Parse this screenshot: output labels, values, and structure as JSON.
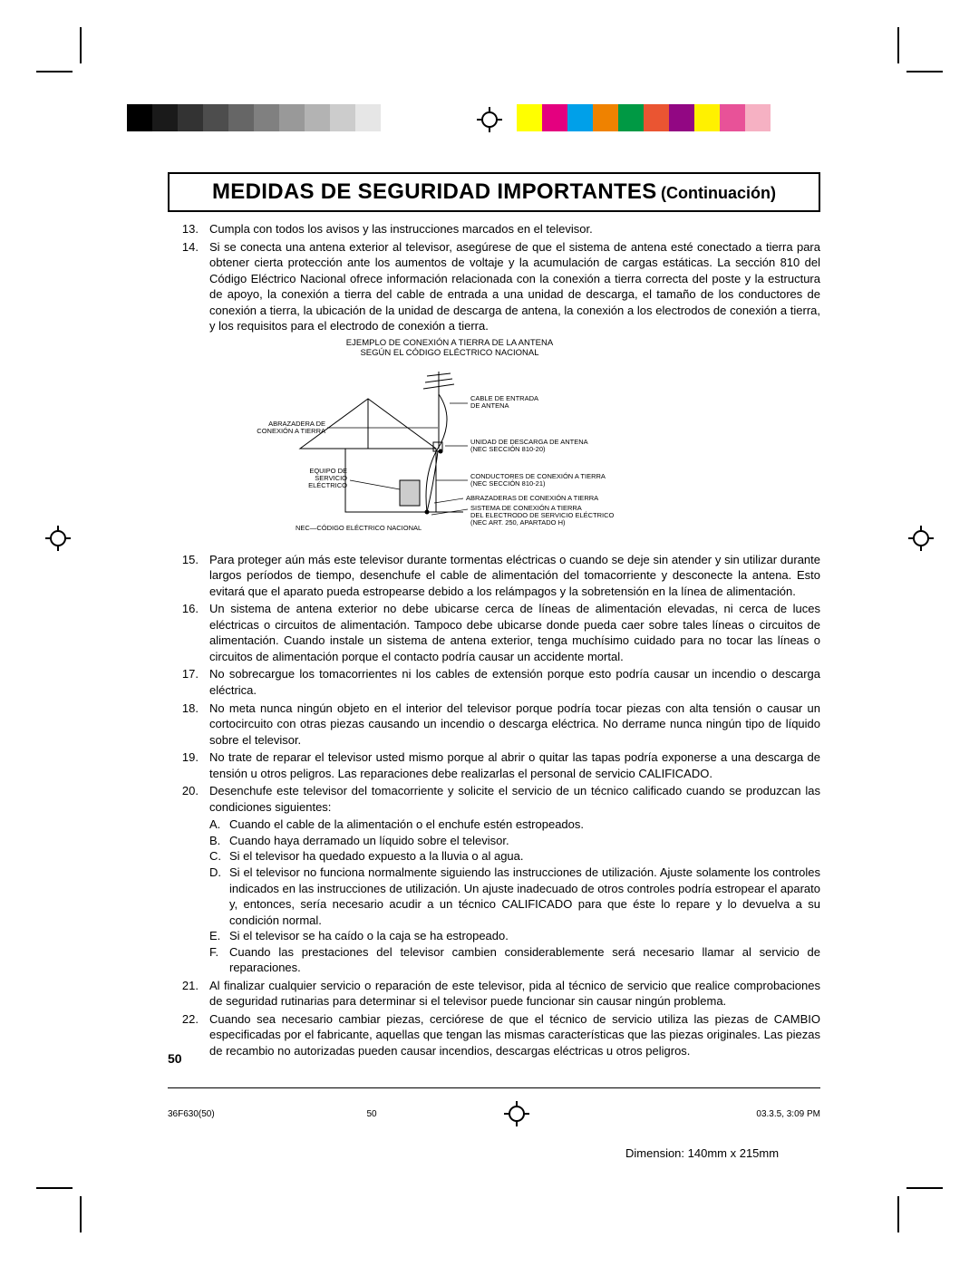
{
  "title": {
    "main": "MEDIDAS DE SEGURIDAD IMPORTANTES",
    "sub": "(Continuación)"
  },
  "colorbar": {
    "grayscale": [
      "#000000",
      "#1a1a1a",
      "#333333",
      "#4d4d4d",
      "#666666",
      "#808080",
      "#999999",
      "#b3b3b3",
      "#cccccc",
      "#e6e6e6"
    ],
    "colors": [
      "#ffff00",
      "#e4007f",
      "#00a0e9",
      "#ef8200",
      "#009944",
      "#ea5532",
      "#920783",
      "#fff100",
      "#e85298",
      "#f6b1c3"
    ]
  },
  "items": [
    {
      "n": "13.",
      "t": "Cumpla con todos los avisos y las instrucciones marcados en el televisor."
    },
    {
      "n": "14.",
      "t": "Si se conecta una antena exterior al televisor, asegúrese de que el sistema de antena esté conectado a tierra para obtener cierta protección ante los aumentos de voltaje y la acumulación de cargas estáticas. La sección 810 del Código Eléctrico Nacional ofrece información relacionada con la conexión a tierra correcta del poste y la estructura de apoyo, la conexión a tierra del cable de entrada a una unidad de descarga, el tamaño de los conductores de conexión a tierra, la ubicación de la unidad de descarga de antena, la conexión a los electrodos de conexión a tierra, y los requisitos para el electrodo de conexión a tierra."
    }
  ],
  "diagram": {
    "caption_l1": "EJEMPLO DE CONEXIÓN A TIERRA DE LA ANTENA",
    "caption_l2": "SEGÚN EL CÓDIGO ELÉCTRICO NACIONAL",
    "labels": {
      "ground_clamp": "ABRAZADERA DE\nCONEXIÓN A TIERRA",
      "service_equip": "EQUIPO DE\nSERVICIO\nELÉCTRICO",
      "lead_in": "CABLE DE ENTRADA\nDE ANTENA",
      "discharge": "UNIDAD DE DESCARGA DE ANTENA\n(NEC SECCIÓN 810-20)",
      "conductors": "CONDUCTORES DE CONEXIÓN A TIERRA\n(NEC SECCIÓN 810-21)",
      "clamps": "ABRAZADERAS DE CONEXIÓN A TIERRA",
      "electrode": "SISTEMA DE CONEXIÓN A TIERRA\nDEL ELECTRODO DE SERVICIO ELÉCTRICO\n(NEC ART. 250, APARTADO H)",
      "nec": "NEC—CÓDIGO ELÉCTRICO NACIONAL"
    }
  },
  "items2": [
    {
      "n": "15.",
      "t": "Para proteger aún más este televisor durante tormentas eléctricas o cuando se deje sin atender y sin utilizar durante largos períodos de tiempo, desenchufe el cable de alimentación del tomacorriente y desconecte la antena. Esto evitará que el aparato pueda estropearse debido a los relámpagos y la sobretensión en la línea de alimentación."
    },
    {
      "n": "16.",
      "t": "Un sistema de antena exterior no debe ubicarse cerca de líneas de alimentación elevadas, ni cerca de luces eléctricas o circuitos de alimentación. Tampoco debe ubicarse donde pueda caer sobre tales líneas o circuitos de alimentación. Cuando instale un sistema de antena exterior, tenga muchísimo cuidado para no tocar las líneas o circuitos de alimentación porque el contacto podría causar un accidente mortal."
    },
    {
      "n": "17.",
      "t": "No sobrecargue los tomacorrientes ni los cables de extensión porque esto podría causar un incendio o descarga eléctrica."
    },
    {
      "n": "18.",
      "t": "No meta nunca ningún objeto en el interior del televisor porque podría tocar piezas con alta tensión o causar un cortocircuito con otras piezas causando un incendio o descarga eléctrica. No derrame nunca ningún tipo de líquido sobre el televisor."
    },
    {
      "n": "19.",
      "t": "No trate de reparar el televisor usted mismo porque al abrir o quitar las tapas podría exponerse a una descarga de tensión u otros peligros. Las reparaciones debe realizarlas el personal de servicio CALIFICADO."
    },
    {
      "n": "20.",
      "t": "Desenchufe este televisor del tomacorriente y solicite el servicio de un técnico calificado cuando se produzcan las condiciones siguientes:"
    }
  ],
  "subitems": [
    {
      "n": "A.",
      "t": "Cuando el cable de la alimentación o el enchufe estén estropeados."
    },
    {
      "n": "B.",
      "t": "Cuando haya derramado un líquido sobre el televisor."
    },
    {
      "n": "C.",
      "t": "Si el televisor ha quedado expuesto a la lluvia o al agua."
    },
    {
      "n": "D.",
      "t": "Si el televisor no funciona normalmente siguiendo las instrucciones de utilización. Ajuste solamente los controles indicados en las instrucciones de utilización. Un ajuste inadecuado de otros controles podría estropear el aparato y, entonces, sería necesario acudir a un técnico CALIFICADO para que éste lo repare y lo devuelva a su condición normal."
    },
    {
      "n": "E.",
      "t": "Si el televisor se ha caído o la caja se ha estropeado."
    },
    {
      "n": "F.",
      "t": "Cuando las prestaciones del televisor cambien considerablemente será necesario llamar al servicio de reparaciones."
    }
  ],
  "items3": [
    {
      "n": "21.",
      "t": "Al finalizar cualquier servicio o reparación de este televisor, pida al técnico de servicio que realice comprobaciones de seguridad rutinarias para determinar si el televisor puede funcionar sin causar ningún problema."
    },
    {
      "n": "22.",
      "t": "Cuando sea necesario cambiar piezas, cerciórese de que el técnico de servicio utiliza las piezas de CAMBIO especificadas por el fabricante, aquellas que tengan las mismas características que las piezas originales. Las piezas de recambio no autorizadas pueden causar incendios, descargas eléctricas u otros peligros."
    }
  ],
  "page_number_side": "50",
  "footer": {
    "doc": "36F630(50)",
    "page": "50",
    "date": "03.3.5, 3:09 PM"
  },
  "dimension": "Dimension: 140mm x 215mm"
}
